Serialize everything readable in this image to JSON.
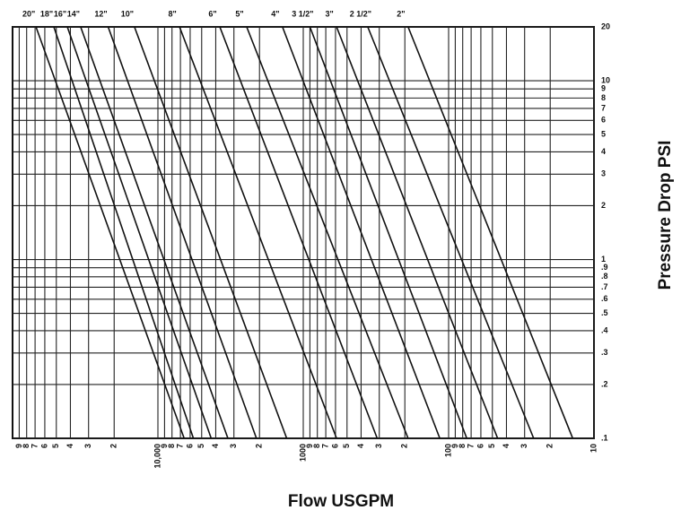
{
  "chart_data": {
    "type": "line",
    "xlabel": "Flow USGPM",
    "ylabel": "Pressure Drop PSI",
    "xscale": "log",
    "yscale": "log",
    "grid": true,
    "color": "#111111",
    "xlim": [
      100000,
      10
    ],
    "ylim": [
      0.1,
      20
    ],
    "xticks": [
      {
        "value": 90000,
        "label": "9"
      },
      {
        "value": 80000,
        "label": "8"
      },
      {
        "value": 70000,
        "label": "7"
      },
      {
        "value": 60000,
        "label": "6"
      },
      {
        "value": 50000,
        "label": "5"
      },
      {
        "value": 40000,
        "label": "4"
      },
      {
        "value": 30000,
        "label": "3"
      },
      {
        "value": 20000,
        "label": "2"
      },
      {
        "value": 10000,
        "label": "10,000"
      },
      {
        "value": 9000,
        "label": "9"
      },
      {
        "value": 8000,
        "label": "8"
      },
      {
        "value": 7000,
        "label": "7"
      },
      {
        "value": 6000,
        "label": "6"
      },
      {
        "value": 5000,
        "label": "5"
      },
      {
        "value": 4000,
        "label": "4"
      },
      {
        "value": 3000,
        "label": "3"
      },
      {
        "value": 2000,
        "label": "2"
      },
      1000,
      {
        "value": 900,
        "label": "9"
      },
      {
        "value": 800,
        "label": "8"
      },
      {
        "value": 700,
        "label": "7"
      },
      {
        "value": 600,
        "label": "6"
      },
      {
        "value": 500,
        "label": "5"
      },
      {
        "value": 400,
        "label": "4"
      },
      {
        "value": 300,
        "label": "3"
      },
      {
        "value": 200,
        "label": "2"
      },
      100,
      {
        "value": 90,
        "label": "9"
      },
      {
        "value": 80,
        "label": "8"
      },
      {
        "value": 70,
        "label": "7"
      },
      {
        "value": 60,
        "label": "6"
      },
      {
        "value": 50,
        "label": "5"
      },
      {
        "value": 40,
        "label": "4"
      },
      {
        "value": 30,
        "label": "3"
      },
      {
        "value": 20,
        "label": "2"
      },
      10
    ],
    "yticks": [
      20,
      10,
      9,
      8,
      7,
      6,
      5,
      4,
      3,
      2,
      1,
      {
        "value": 0.9,
        "label": ".9"
      },
      {
        "value": 0.8,
        "label": ".8"
      },
      {
        "value": 0.7,
        "label": ".7"
      },
      {
        "value": 0.6,
        "label": ".6"
      },
      {
        "value": 0.5,
        "label": ".5"
      },
      {
        "value": 0.4,
        "label": ".4"
      },
      {
        "value": 0.3,
        "label": ".3"
      },
      {
        "value": 0.2,
        "label": ".2"
      },
      {
        "value": 0.1,
        "label": ".1"
      }
    ],
    "series": [
      {
        "name": "20\"",
        "x": [
          69000,
          6600
        ],
        "values": [
          20,
          0.1
        ]
      },
      {
        "name": "18\"",
        "x": [
          52000,
          5700
        ],
        "values": [
          20,
          0.1
        ]
      },
      {
        "name": "16\"",
        "x": [
          42000,
          4300
        ],
        "values": [
          20,
          0.1
        ]
      },
      {
        "name": "14\"",
        "x": [
          34000,
          3300
        ],
        "values": [
          20,
          0.1
        ]
      },
      {
        "name": "12\"",
        "x": [
          22000,
          2100
        ],
        "values": [
          20,
          0.1
        ]
      },
      {
        "name": "10\"",
        "x": [
          14500,
          1300
        ],
        "values": [
          20,
          0.1
        ]
      },
      {
        "name": "8\"",
        "x": [
          7100,
          590
        ],
        "values": [
          20,
          0.1
        ]
      },
      {
        "name": "6\"",
        "x": [
          3750,
          310
        ],
        "values": [
          20,
          0.1
        ]
      },
      {
        "name": "5\"",
        "x": [
          2450,
          190
        ],
        "values": [
          20,
          0.1
        ]
      },
      {
        "name": "4\"",
        "x": [
          1390,
          115
        ],
        "values": [
          20,
          0.1
        ]
      },
      {
        "name": "3 1/2\"",
        "x": [
          900,
          75
        ],
        "values": [
          20,
          0.1
        ]
      },
      {
        "name": "3\"",
        "x": [
          590,
          46
        ],
        "values": [
          20,
          0.1
        ]
      },
      {
        "name": "2 1/2\"",
        "x": [
          360,
          26
        ],
        "values": [
          20,
          0.1
        ]
      },
      {
        "name": "2\"",
        "x": [
          190,
          14
        ],
        "values": [
          20,
          0.1
        ]
      }
    ]
  }
}
